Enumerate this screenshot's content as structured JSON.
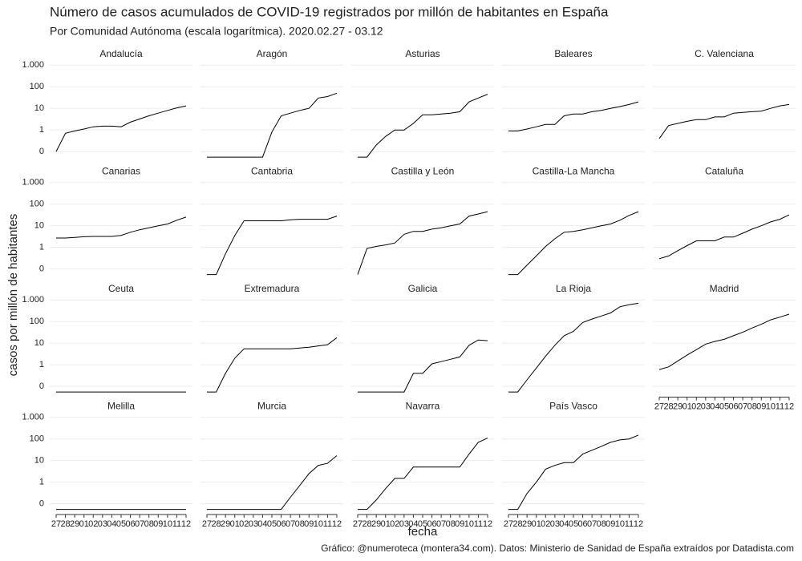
{
  "chart_data": {
    "type": "line",
    "title": "Número de casos acumulados de COVID-19 registrados por millón de habitantes en España",
    "subtitle": "Por Comunidad Autónoma (escala logarítmica). 2020.02.27 - 03.12",
    "x_label": "fecha",
    "y_label": "casos por millón de habitantes",
    "caption": "Gráfico: @numeroteca (montera34.com). Datos: Ministerio de Sanidad de España extraídos por Datadista.com",
    "log_scale": true,
    "grid": true,
    "color": "#000000",
    "categories": [
      "27",
      "28",
      "29",
      "01",
      "02",
      "03",
      "04",
      "05",
      "06",
      "07",
      "08",
      "09",
      "10",
      "11",
      "12"
    ],
    "ylim": [
      0.045,
      1700
    ],
    "yticks": [
      {
        "value": 0.1,
        "label": "0"
      },
      1,
      10,
      100,
      {
        "value": 1000,
        "label": "1.000"
      }
    ],
    "panels": [
      {
        "title": "Andalucía",
        "values": [
          0.1,
          0.7,
          0.9,
          1.1,
          1.4,
          1.5,
          1.5,
          1.4,
          2.3,
          3.2,
          4.5,
          6,
          8,
          10.5,
          13
        ]
      },
      {
        "title": "Aragón",
        "values": [
          0.055,
          0.055,
          0.055,
          0.055,
          0.055,
          0.055,
          0.055,
          0.8,
          4.5,
          6,
          8,
          10,
          30,
          35,
          50
        ]
      },
      {
        "title": "Asturias",
        "values": [
          0.055,
          0.055,
          0.2,
          0.5,
          1,
          1,
          2,
          5,
          5,
          5.5,
          6,
          7,
          20,
          30,
          45
        ]
      },
      {
        "title": "Baleares",
        "values": [
          0.9,
          0.9,
          1.1,
          1.4,
          1.8,
          1.8,
          4.5,
          5.5,
          5.5,
          7,
          8,
          10,
          12,
          15,
          20
        ]
      },
      {
        "title": "C. Valenciana",
        "values": [
          0.4,
          1.6,
          2,
          2.5,
          3,
          3,
          4,
          4,
          6,
          6.5,
          7,
          7.5,
          10,
          13,
          15
        ]
      },
      {
        "title": "Canarias",
        "values": [
          2.7,
          2.7,
          2.9,
          3.1,
          3.2,
          3.2,
          3.2,
          3.6,
          5,
          6.5,
          8,
          10,
          12,
          18,
          25
        ]
      },
      {
        "title": "Cantabria",
        "values": [
          0.055,
          0.055,
          0.5,
          3.5,
          17,
          17,
          17,
          17,
          17,
          19,
          20,
          20,
          20,
          20,
          28
        ]
      },
      {
        "title": "Castilla y León",
        "values": [
          0.055,
          0.9,
          1.1,
          1.3,
          1.6,
          4,
          5.5,
          5.5,
          7,
          8,
          10,
          12,
          28,
          35,
          45
        ]
      },
      {
        "title": "Castilla-La Mancha",
        "values": [
          0.055,
          0.055,
          0.15,
          0.4,
          1.1,
          2.5,
          5,
          5.5,
          6.5,
          8,
          10,
          12,
          18,
          30,
          45
        ]
      },
      {
        "title": "Cataluña",
        "values": [
          0.3,
          0.4,
          0.7,
          1.2,
          2,
          2,
          2,
          3,
          3,
          4.5,
          7,
          10,
          15,
          20,
          32
        ]
      },
      {
        "title": "Ceuta",
        "values": [
          0.055,
          0.055,
          0.055,
          0.055,
          0.055,
          0.055,
          0.055,
          0.055,
          0.055,
          0.055,
          0.055,
          0.055,
          0.055,
          0.055,
          0.055
        ]
      },
      {
        "title": "Extremadura",
        "values": [
          0.055,
          0.055,
          0.4,
          2,
          5.5,
          5.5,
          5.5,
          5.5,
          5.5,
          5.5,
          6,
          6.5,
          7.5,
          8.5,
          18
        ]
      },
      {
        "title": "Galicia",
        "values": [
          0.055,
          0.055,
          0.055,
          0.055,
          0.055,
          0.055,
          0.4,
          0.4,
          1.1,
          1.4,
          1.8,
          2.3,
          8,
          14,
          13
        ]
      },
      {
        "title": "La Rioja",
        "values": [
          0.055,
          0.055,
          0.2,
          0.7,
          2.5,
          8,
          22,
          35,
          90,
          130,
          180,
          250,
          480,
          600,
          700
        ]
      },
      {
        "title": "Madrid",
        "values": [
          0.6,
          0.8,
          1.5,
          2.8,
          5,
          9,
          12,
          15,
          22,
          32,
          50,
          75,
          120,
          160,
          220
        ]
      },
      {
        "title": "Melilla",
        "values": [
          0.055,
          0.055,
          0.055,
          0.055,
          0.055,
          0.055,
          0.055,
          0.055,
          0.055,
          0.055,
          0.055,
          0.055,
          0.055,
          0.055,
          0.055
        ]
      },
      {
        "title": "Murcia",
        "values": [
          0.055,
          0.055,
          0.055,
          0.055,
          0.055,
          0.055,
          0.055,
          0.055,
          0.055,
          0.2,
          0.7,
          2.5,
          6,
          7.5,
          17
        ]
      },
      {
        "title": "Navarra",
        "values": [
          0.055,
          0.055,
          0.15,
          0.5,
          1.5,
          1.5,
          5,
          5,
          5,
          5,
          5,
          5,
          20,
          70,
          110
        ]
      },
      {
        "title": "País Vasco",
        "values": [
          0.055,
          0.055,
          0.3,
          1,
          4,
          6,
          8,
          8,
          20,
          30,
          45,
          70,
          90,
          100,
          150
        ]
      }
    ]
  }
}
